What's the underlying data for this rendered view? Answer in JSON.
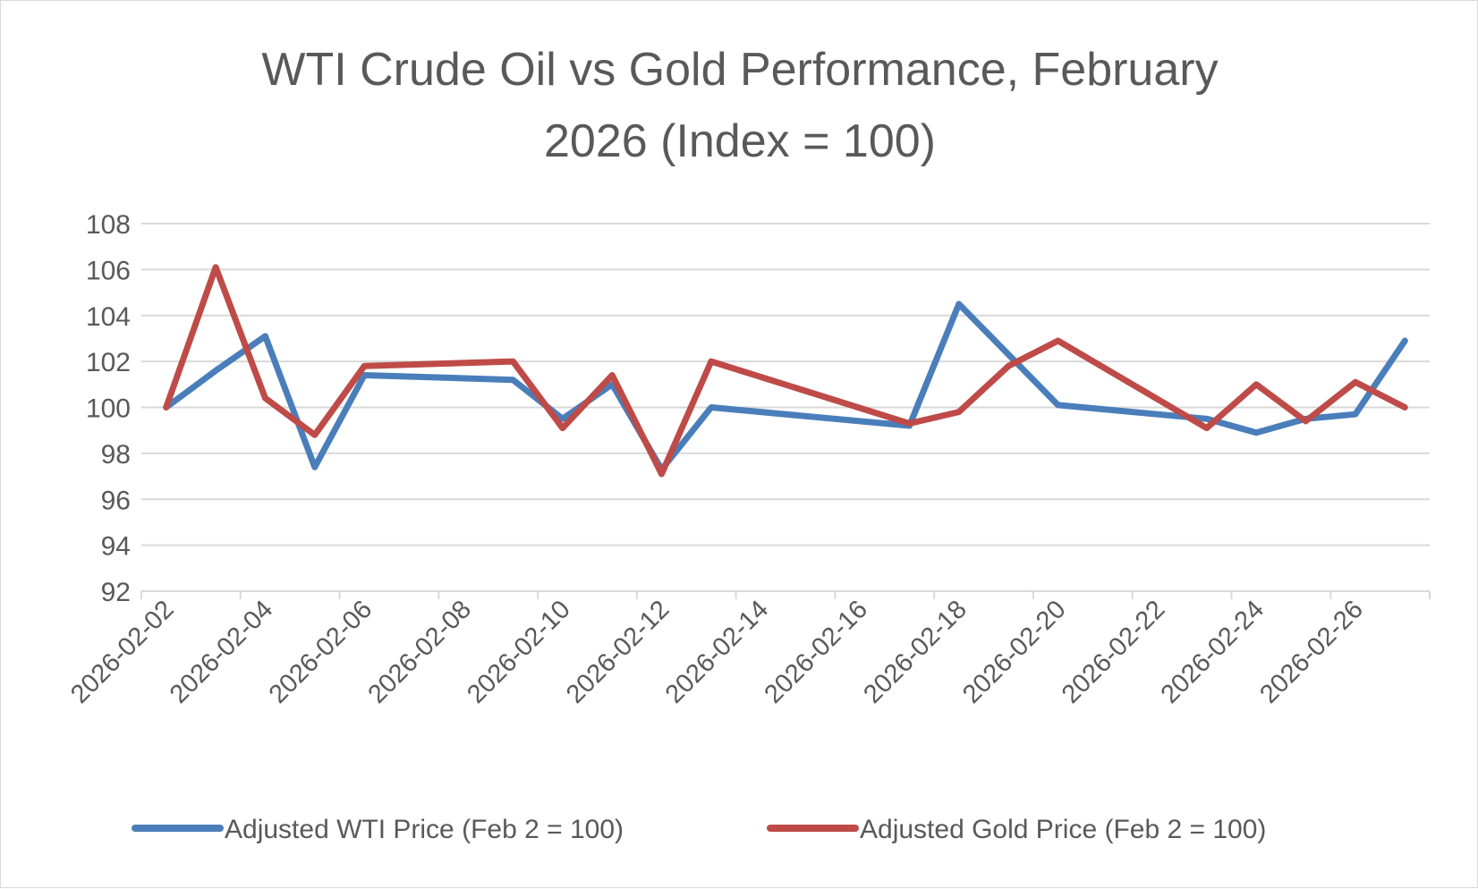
{
  "chart_data": {
    "type": "line",
    "title_lines": [
      "WTI Crude Oil vs Gold Performance, February",
      "2026 (Index = 100)"
    ],
    "xlabel": "",
    "ylabel": "",
    "ylim": [
      92,
      108
    ],
    "yticks": [
      92,
      94,
      96,
      98,
      100,
      102,
      104,
      106,
      108
    ],
    "xlim": [
      "2026-02-02",
      "2026-02-28"
    ],
    "xticks": [
      "2026-02-02",
      "2026-02-04",
      "2026-02-06",
      "2026-02-08",
      "2026-02-10",
      "2026-02-12",
      "2026-02-14",
      "2026-02-16",
      "2026-02-18",
      "2026-02-20",
      "2026-02-22",
      "2026-02-24",
      "2026-02-26"
    ],
    "grid": true,
    "legend_position": "bottom",
    "series": [
      {
        "name": "Adjusted WTI Price (Feb 2 = 100)",
        "color": "#4a7ebb",
        "points": [
          [
            "2026-02-02",
            100.0
          ],
          [
            "2026-02-03",
            101.6
          ],
          [
            "2026-02-04",
            103.1
          ],
          [
            "2026-02-05",
            97.4
          ],
          [
            "2026-02-06",
            101.4
          ],
          [
            "2026-02-09",
            101.2
          ],
          [
            "2026-02-10",
            99.5
          ],
          [
            "2026-02-11",
            101.0
          ],
          [
            "2026-02-12",
            97.3
          ],
          [
            "2026-02-13",
            100.0
          ],
          [
            "2026-02-17",
            99.2
          ],
          [
            "2026-02-18",
            104.5
          ],
          [
            "2026-02-20",
            100.1
          ],
          [
            "2026-02-23",
            99.5
          ],
          [
            "2026-02-24",
            98.9
          ],
          [
            "2026-02-25",
            99.5
          ],
          [
            "2026-02-26",
            99.7
          ],
          [
            "2026-02-27",
            102.9
          ]
        ]
      },
      {
        "name": "Adjusted Gold Price (Feb 2 = 100)",
        "color": "#be4b48",
        "points": [
          [
            "2026-02-02",
            100.0
          ],
          [
            "2026-02-03",
            106.1
          ],
          [
            "2026-02-04",
            100.4
          ],
          [
            "2026-02-05",
            98.8
          ],
          [
            "2026-02-06",
            101.8
          ],
          [
            "2026-02-09",
            102.0
          ],
          [
            "2026-02-10",
            99.1
          ],
          [
            "2026-02-11",
            101.4
          ],
          [
            "2026-02-12",
            97.1
          ],
          [
            "2026-02-13",
            102.0
          ],
          [
            "2026-02-17",
            99.3
          ],
          [
            "2026-02-18",
            99.8
          ],
          [
            "2026-02-19",
            101.8
          ],
          [
            "2026-02-20",
            102.9
          ],
          [
            "2026-02-23",
            99.1
          ],
          [
            "2026-02-24",
            101.0
          ],
          [
            "2026-02-25",
            99.4
          ],
          [
            "2026-02-26",
            101.1
          ],
          [
            "2026-02-27",
            100.0
          ]
        ]
      }
    ]
  }
}
